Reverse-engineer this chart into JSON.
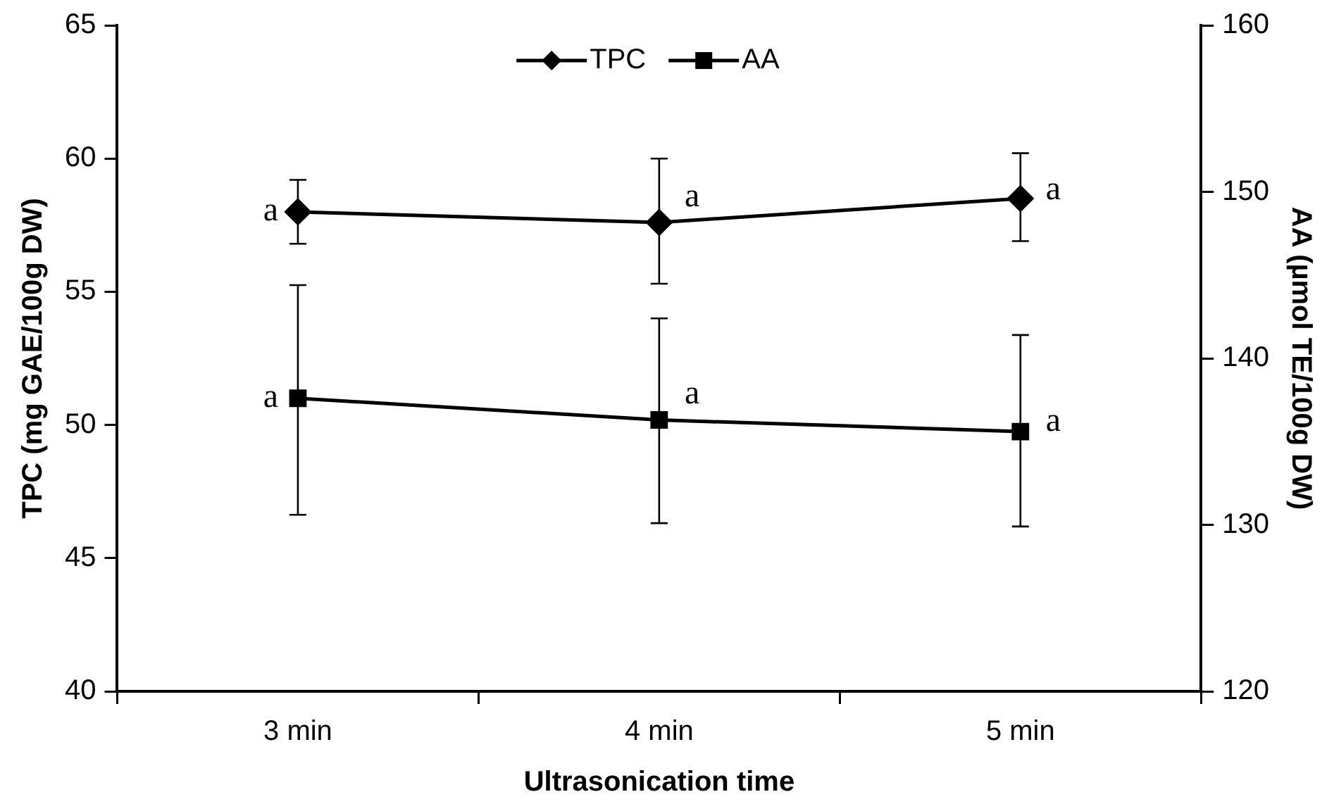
{
  "chart_data": {
    "type": "line",
    "xlabel": "Ultrasonication time",
    "ylabel": "TPC (mg GAE/100g DW)",
    "y2label": "AA (µmol TE/100g DW)",
    "categories": [
      "3 min",
      "4 min",
      "5 min"
    ],
    "series": [
      {
        "name": "TPC",
        "color": "#000000",
        "marker": "diamond",
        "values": [
          58.0,
          57.6,
          58.5
        ],
        "errors": [
          [
            56.8,
            59.2
          ],
          [
            55.3,
            60.0
          ],
          [
            56.9,
            60.2
          ]
        ]
      },
      {
        "name": "AA",
        "color": "#000000",
        "marker": "square",
        "axis": "y2",
        "values": [
          137.6,
          136.3,
          135.6
        ],
        "errors": [
          [
            130.6,
            144.4
          ],
          [
            130.1,
            142.4
          ],
          [
            129.9,
            141.4
          ]
        ]
      }
    ],
    "ylim": [
      40,
      65
    ],
    "yticks": [
      40,
      45,
      50,
      55,
      60,
      65
    ],
    "y2lim": [
      120,
      160
    ],
    "y2ticks": [
      120,
      130,
      140,
      150,
      160
    ],
    "legend": "top",
    "grid": false,
    "line_style": "solid",
    "annotations": [
      {
        "text": "a",
        "x": "3 min",
        "y": 58.0
      },
      {
        "text": "a",
        "x": "4 min",
        "y": 57.6
      },
      {
        "text": "a",
        "x": "5 min",
        "y": 58.5
      },
      {
        "text": "a",
        "x": "3 min",
        "y": 51.0
      },
      {
        "text": "a",
        "x": "4 min",
        "y": 50.2
      },
      {
        "text": "a",
        "x": "5 min",
        "y": 49.8
      }
    ]
  }
}
